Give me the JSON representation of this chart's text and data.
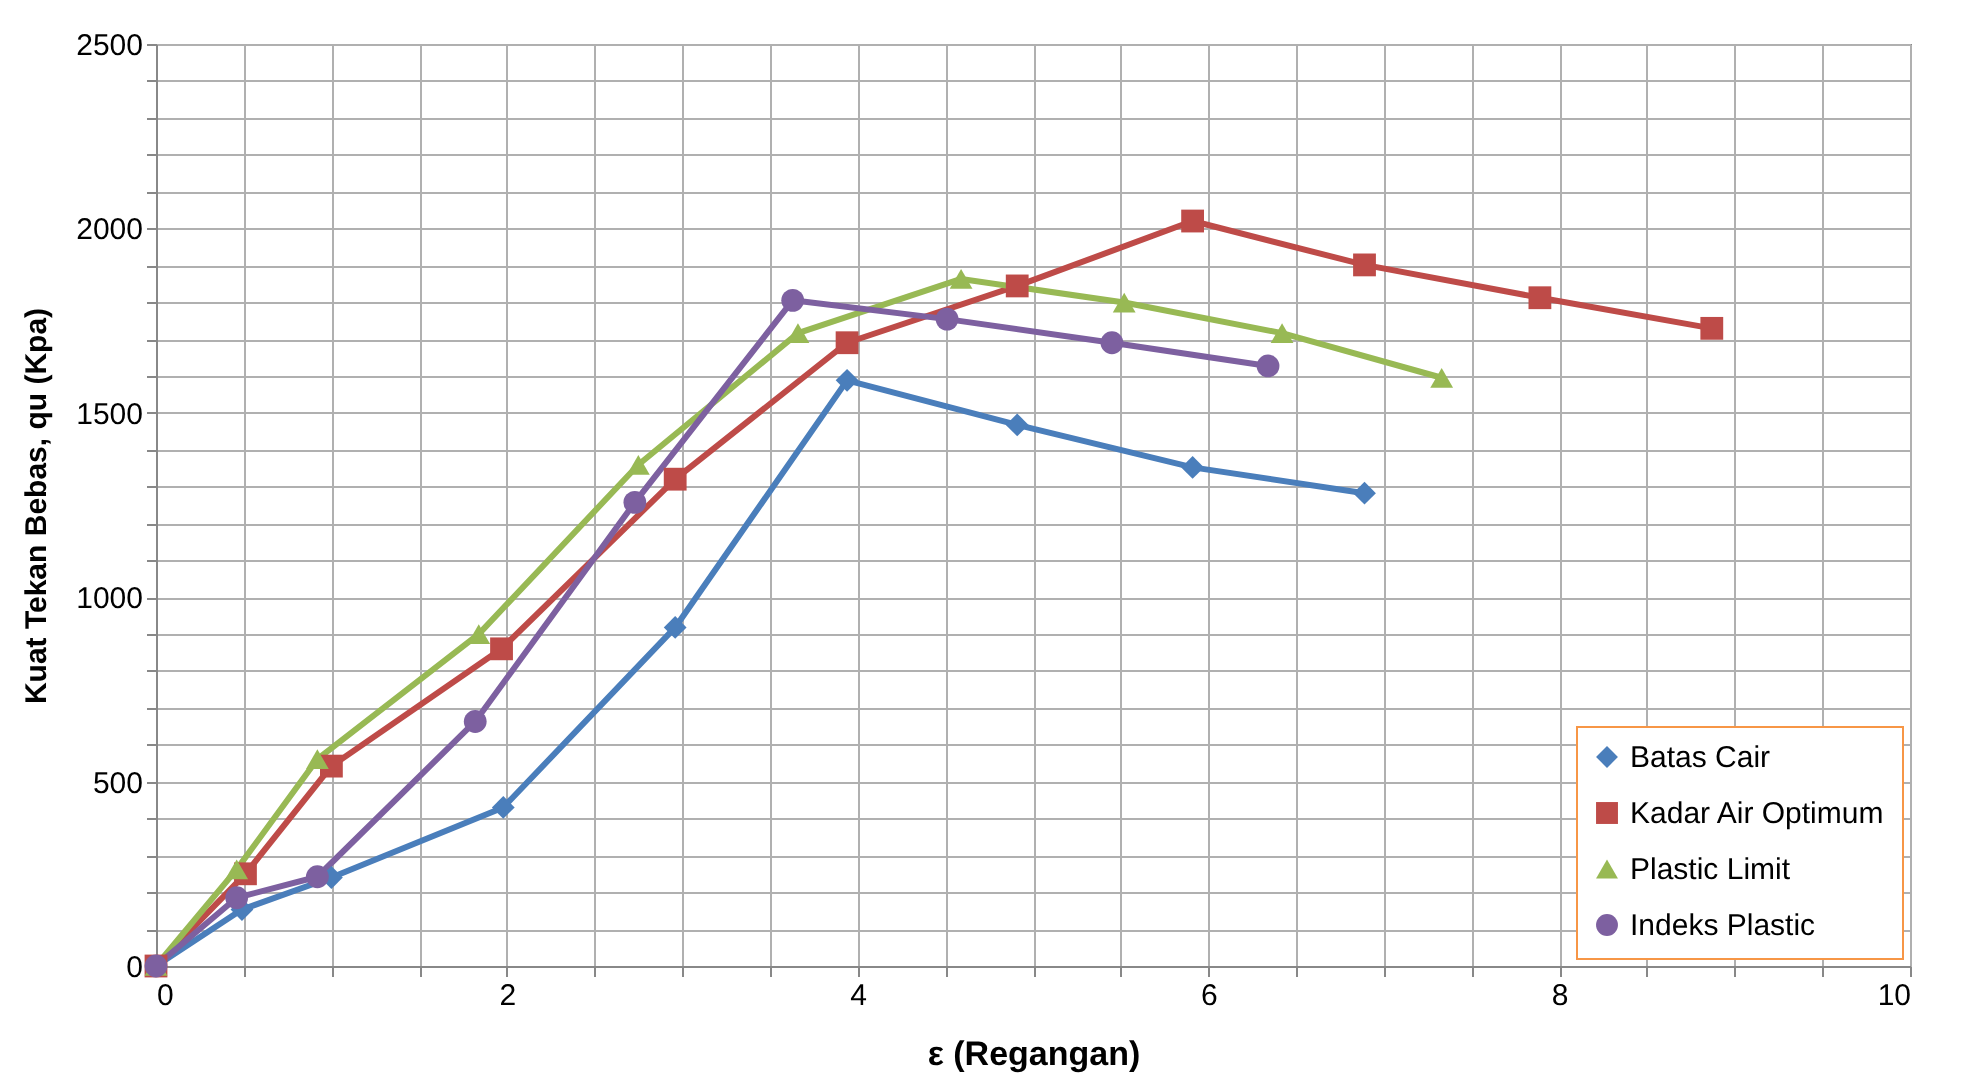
{
  "chart_data": {
    "type": "line",
    "xlabel": "ε (Regangan)",
    "ylabel": "Kuat Tekan Bebas,  qu (Kpa)",
    "xlim": [
      0,
      10
    ],
    "ylim": [
      0,
      2500
    ],
    "xticks": [
      0,
      {
        "value": 0.5,
        "label": null
      },
      {
        "value": 1,
        "label": null
      },
      {
        "value": 1.5,
        "label": null
      },
      2,
      {
        "value": 2.5,
        "label": null
      },
      {
        "value": 3,
        "label": null
      },
      {
        "value": 3.5,
        "label": null
      },
      4,
      {
        "value": 4.5,
        "label": null
      },
      {
        "value": 5,
        "label": null
      },
      {
        "value": 5.5,
        "label": null
      },
      6,
      {
        "value": 6.5,
        "label": null
      },
      {
        "value": 7,
        "label": null
      },
      {
        "value": 7.5,
        "label": null
      },
      8,
      {
        "value": 8.5,
        "label": null
      },
      {
        "value": 9,
        "label": null
      },
      {
        "value": 9.5,
        "label": null
      },
      10
    ],
    "yticks": [
      0,
      {
        "value": 100,
        "label": null
      },
      {
        "value": 200,
        "label": null
      },
      {
        "value": 300,
        "label": null
      },
      {
        "value": 400,
        "label": null
      },
      500,
      {
        "value": 600,
        "label": null
      },
      {
        "value": 700,
        "label": null
      },
      {
        "value": 800,
        "label": null
      },
      {
        "value": 900,
        "label": null
      },
      1000,
      {
        "value": 1100,
        "label": null
      },
      {
        "value": 1200,
        "label": null
      },
      {
        "value": 1300,
        "label": null
      },
      {
        "value": 1400,
        "label": null
      },
      1500,
      {
        "value": 1600,
        "label": null
      },
      {
        "value": 1700,
        "label": null
      },
      {
        "value": 1800,
        "label": null
      },
      {
        "value": 1900,
        "label": null
      },
      2000,
      {
        "value": 2100,
        "label": null
      },
      {
        "value": 2200,
        "label": null
      },
      {
        "value": 2300,
        "label": null
      },
      {
        "value": 2400,
        "label": null
      },
      2500
    ],
    "grid": true,
    "legend": "bottom right",
    "line_style": "solid",
    "series": [
      {
        "name": "Batas Cair",
        "color": "#4a7ebb",
        "marker": "diamond",
        "x": [
          0,
          0.49,
          1.0,
          1.98,
          2.96,
          3.94,
          4.91,
          5.91,
          6.89
        ],
        "values": [
          0,
          153,
          240,
          430,
          918,
          1588,
          1467,
          1352,
          1282
        ]
      },
      {
        "name": "Kadar Air Optimum",
        "color": "#be4b48",
        "marker": "square",
        "x": [
          0,
          0.51,
          1.0,
          1.97,
          2.96,
          3.94,
          4.91,
          5.91,
          6.89,
          7.89,
          8.87
        ],
        "values": [
          0,
          250,
          542,
          860,
          1320,
          1690,
          1844,
          2020,
          1901,
          1812,
          1729
        ]
      },
      {
        "name": "Plastic Limit",
        "color": "#98b954",
        "marker": "triangle",
        "x": [
          0,
          0.46,
          0.92,
          1.84,
          2.75,
          3.66,
          4.59,
          5.52,
          6.42,
          7.33
        ],
        "values": [
          0,
          262,
          561,
          900,
          1359,
          1716,
          1863,
          1799,
          1716,
          1595
        ]
      },
      {
        "name": "Indeks Plastic",
        "color": "#7d60a0",
        "marker": "circle",
        "x": [
          0,
          0.46,
          0.92,
          1.82,
          2.73,
          3.63,
          4.51,
          5.45,
          6.34
        ],
        "values": [
          0,
          185,
          242,
          663,
          1257,
          1805,
          1754,
          1690,
          1627
        ]
      }
    ]
  }
}
